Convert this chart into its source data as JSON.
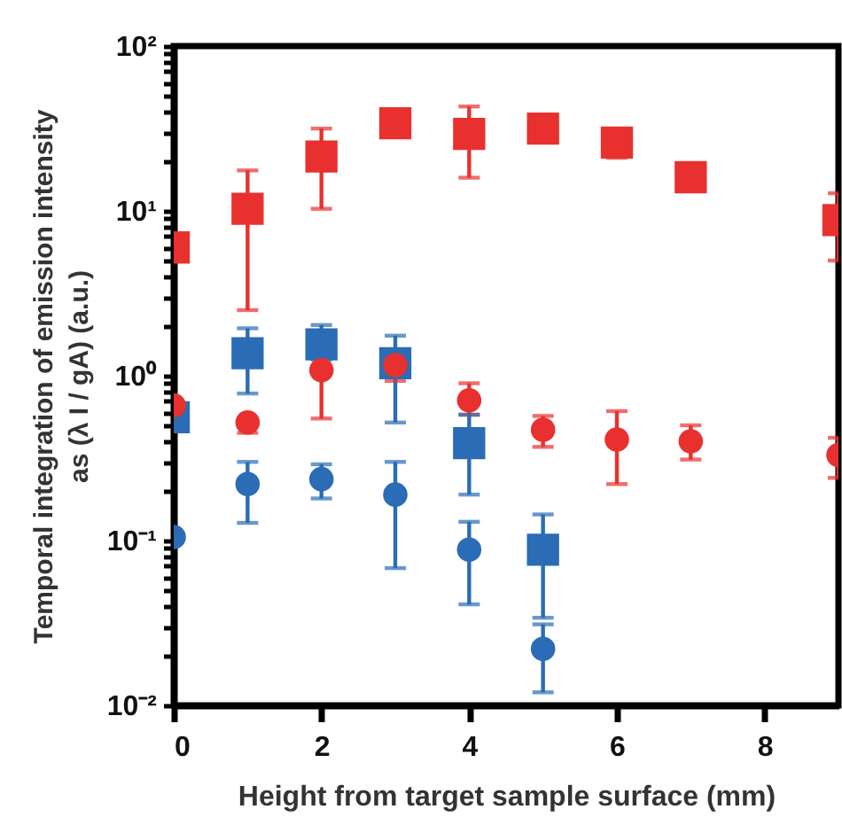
{
  "chart_data": {
    "type": "scatter",
    "xlabel": "Height from target sample surface (mm)",
    "ylabel": "Temporal integration of emission intensity\nas (λ I / gA)  (a.u.)",
    "log": "y",
    "xlim": [
      0,
      9
    ],
    "xticks": [
      0,
      2,
      4,
      6,
      8
    ],
    "ylim": [
      0.01,
      100
    ],
    "yticks": [
      {
        "value": 0.01,
        "label": "10⁻²"
      },
      {
        "value": 0.02,
        "label": null
      },
      {
        "value": 0.03,
        "label": null
      },
      {
        "value": 0.04,
        "label": null
      },
      {
        "value": 0.05,
        "label": null
      },
      {
        "value": 0.06,
        "label": null
      },
      {
        "value": 0.07,
        "label": null
      },
      {
        "value": 0.08,
        "label": null
      },
      {
        "value": 0.09,
        "label": null
      },
      {
        "value": 0.1,
        "label": "10⁻¹"
      },
      {
        "value": 0.2,
        "label": null
      },
      {
        "value": 0.3,
        "label": null
      },
      {
        "value": 0.4,
        "label": null
      },
      {
        "value": 0.5,
        "label": null
      },
      {
        "value": 0.6,
        "label": null
      },
      {
        "value": 0.7,
        "label": null
      },
      {
        "value": 0.8,
        "label": null
      },
      {
        "value": 0.9,
        "label": null
      },
      {
        "value": 1,
        "label": "10⁰"
      },
      {
        "value": 2,
        "label": null
      },
      {
        "value": 3,
        "label": null
      },
      {
        "value": 4,
        "label": null
      },
      {
        "value": 5,
        "label": null
      },
      {
        "value": 6,
        "label": null
      },
      {
        "value": 7,
        "label": null
      },
      {
        "value": 8,
        "label": null
      },
      {
        "value": 9,
        "label": null
      },
      {
        "value": 10,
        "label": "10¹"
      },
      {
        "value": 20,
        "label": null
      },
      {
        "value": 30,
        "label": null
      },
      {
        "value": 40,
        "label": null
      },
      {
        "value": 50,
        "label": null
      },
      {
        "value": 60,
        "label": null
      },
      {
        "value": 70,
        "label": null
      },
      {
        "value": 80,
        "label": null
      },
      {
        "value": 90,
        "label": null
      },
      {
        "value": 100,
        "label": "10²"
      }
    ],
    "grid": false,
    "legend": false,
    "series": [
      {
        "color": "#e8312f",
        "marker": "square",
        "x": [
          0,
          1,
          2,
          3,
          4,
          5,
          6,
          7,
          9
        ],
        "values": [
          6.0,
          10.3,
          21.4,
          34,
          29.3,
          31.6,
          26,
          16,
          8.8
        ],
        "errors": [
          null,
          [
            2.5,
            17.6
          ],
          [
            10.3,
            31.6
          ],
          null,
          [
            15.9,
            43
          ],
          null,
          [
            21,
            26
          ],
          null,
          [
            5.0,
            12.8
          ]
        ]
      },
      {
        "color": "#e8312f",
        "marker": "circle",
        "x": [
          0,
          1,
          2,
          3,
          4,
          5,
          6,
          7,
          9
        ],
        "values": [
          0.66,
          0.52,
          1.08,
          1.16,
          0.71,
          0.47,
          0.41,
          0.4,
          0.33
        ],
        "errors": [
          null,
          [
            0.45,
            0.52
          ],
          [
            0.55,
            1.08
          ],
          [
            0.93,
            1.16
          ],
          [
            0.58,
            0.9
          ],
          [
            0.37,
            0.57
          ],
          [
            0.22,
            0.61
          ],
          [
            0.31,
            0.5
          ],
          [
            0.24,
            0.42
          ]
        ]
      },
      {
        "color": "#2a6cb5",
        "marker": "square",
        "x": [
          0,
          1,
          2,
          3,
          4,
          5
        ],
        "values": [
          0.56,
          1.37,
          1.55,
          1.19,
          0.39,
          0.088
        ],
        "errors": [
          null,
          [
            0.78,
            1.94
          ],
          [
            1.25,
            2.03
          ],
          [
            0.52,
            1.75
          ],
          [
            0.19,
            0.58
          ],
          [
            0.034,
            0.144
          ]
        ]
      },
      {
        "color": "#2a6cb5",
        "marker": "circle",
        "x": [
          0,
          1,
          2,
          3,
          4,
          5
        ],
        "values": [
          0.105,
          0.22,
          0.236,
          0.19,
          0.088,
          0.022
        ],
        "errors": [
          null,
          [
            0.128,
            0.3
          ],
          [
            0.18,
            0.29
          ],
          [
            0.068,
            0.3
          ],
          [
            0.041,
            0.13
          ],
          [
            0.012,
            0.031
          ]
        ]
      }
    ]
  }
}
